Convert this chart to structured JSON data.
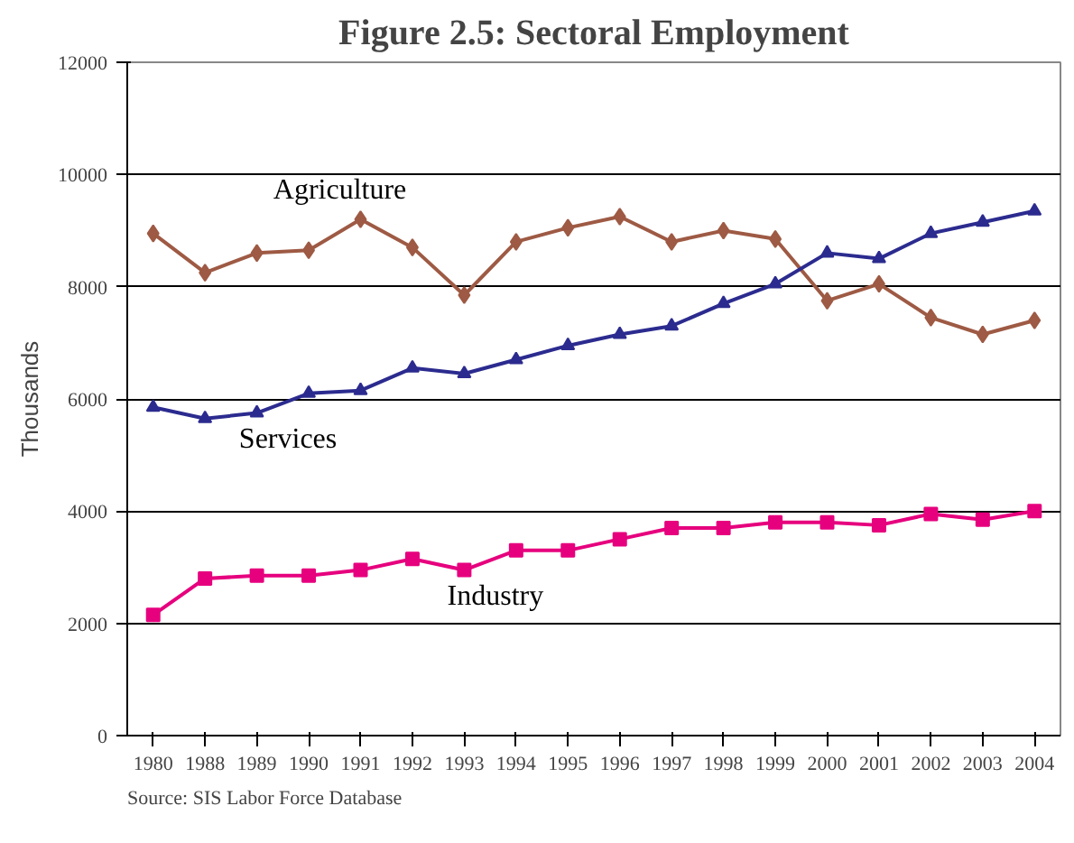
{
  "chart_data": {
    "type": "line",
    "title": "Figure 2.5: Sectoral Employment",
    "ylabel": "Thousands",
    "categories": [
      "1980",
      "1988",
      "1989",
      "1990",
      "1991",
      "1992",
      "1993",
      "1994",
      "1995",
      "1996",
      "1997",
      "1998",
      "1999",
      "2000",
      "2001",
      "2002",
      "2003",
      "2004"
    ],
    "series": [
      {
        "name": "Agriculture",
        "color": "#9e5a44",
        "marker": "diamond",
        "values": [
          8950,
          8250,
          8600,
          8650,
          9200,
          8700,
          7850,
          8800,
          9050,
          9250,
          8800,
          9000,
          8850,
          7750,
          8050,
          7450,
          7150,
          7400
        ]
      },
      {
        "name": "Services",
        "color": "#2b2b8f",
        "marker": "triangle",
        "values": [
          5850,
          5650,
          5750,
          6100,
          6150,
          6550,
          6450,
          6700,
          6950,
          7150,
          7300,
          7700,
          8050,
          8600,
          8500,
          8950,
          9150,
          9350
        ]
      },
      {
        "name": "Industry",
        "color": "#e6007e",
        "marker": "square",
        "values": [
          2150,
          2800,
          2850,
          2850,
          2950,
          3150,
          2950,
          3300,
          3300,
          3500,
          3700,
          3700,
          3800,
          3800,
          3750,
          3950,
          3850,
          4000
        ]
      }
    ],
    "ylim": [
      0,
      12000
    ],
    "yticks": [
      0,
      2000,
      4000,
      6000,
      8000,
      10000,
      12000
    ],
    "grid": "y",
    "annotations": [
      "Source: SIS Labor Force Database"
    ]
  }
}
